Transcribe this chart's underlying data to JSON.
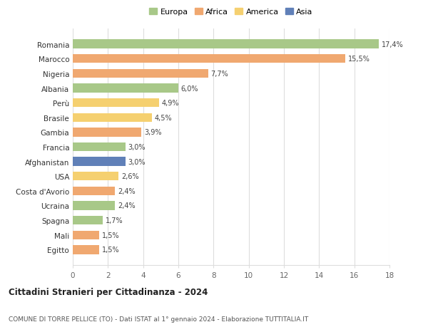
{
  "categories": [
    "Egitto",
    "Mali",
    "Spagna",
    "Ucraina",
    "Costa d'Avorio",
    "USA",
    "Afghanistan",
    "Francia",
    "Gambia",
    "Brasile",
    "Perù",
    "Albania",
    "Nigeria",
    "Marocco",
    "Romania"
  ],
  "values": [
    1.5,
    1.5,
    1.7,
    2.4,
    2.4,
    2.6,
    3.0,
    3.0,
    3.9,
    4.5,
    4.9,
    6.0,
    7.7,
    15.5,
    17.4
  ],
  "labels": [
    "1,5%",
    "1,5%",
    "1,7%",
    "2,4%",
    "2,4%",
    "2,6%",
    "3,0%",
    "3,0%",
    "3,9%",
    "4,5%",
    "4,9%",
    "6,0%",
    "7,7%",
    "15,5%",
    "17,4%"
  ],
  "colors": [
    "#f0a870",
    "#f0a870",
    "#a8c888",
    "#a8c888",
    "#f0a870",
    "#f5d070",
    "#6080b8",
    "#a8c888",
    "#f0a870",
    "#f5d070",
    "#f5d070",
    "#a8c888",
    "#f0a870",
    "#f0a870",
    "#a8c888"
  ],
  "legend_labels": [
    "Europa",
    "Africa",
    "America",
    "Asia"
  ],
  "legend_colors": [
    "#a8c888",
    "#f0a870",
    "#f5d070",
    "#6080b8"
  ],
  "title": "Cittadini Stranieri per Cittadinanza - 2024",
  "subtitle": "COMUNE DI TORRE PELLICE (TO) - Dati ISTAT al 1° gennaio 2024 - Elaborazione TUTTITALIA.IT",
  "xlim": [
    0,
    18
  ],
  "xticks": [
    0,
    2,
    4,
    6,
    8,
    10,
    12,
    14,
    16,
    18
  ],
  "background_color": "#ffffff",
  "grid_color": "#dddddd",
  "bar_height": 0.6
}
